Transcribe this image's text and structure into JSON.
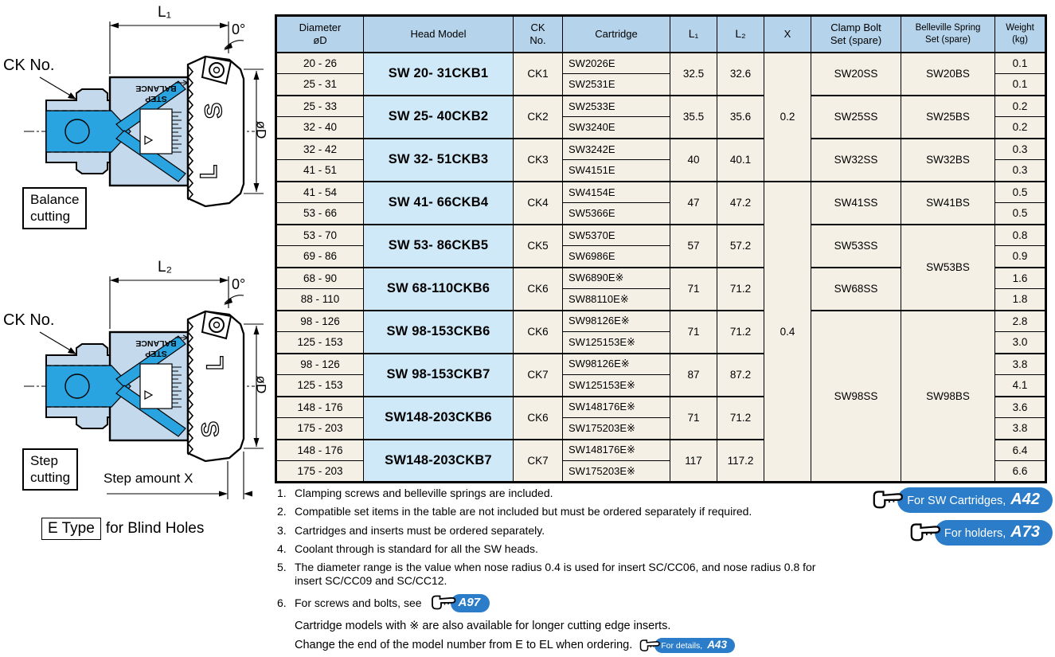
{
  "colors": {
    "header_bg": "#b5d3ea",
    "model_bg": "#cfe9f8",
    "cell_bg": "#f4f0e5",
    "badge_blue": "#2b7cc9",
    "tool_light": "#c5d9ed",
    "tool_bright": "#29a4e0"
  },
  "diagrams": {
    "balance": {
      "caption": "Balance\ncutting",
      "length_label": "L₁",
      "angle_label": "0°",
      "ck_label": "CK No.",
      "diameter_label": "øD",
      "body_text_line1": "STEP",
      "body_text_line2": "BALANCE",
      "letter_top": "S",
      "letter_bottom": "L"
    },
    "step": {
      "caption": "Step\ncutting",
      "length_label": "L₂",
      "angle_label": "0°",
      "ck_label": "CK No.",
      "diameter_label": "øD",
      "step_amount_label": "Step amount X",
      "body_text_line1": "STEP",
      "body_text_line2": "BALANCE",
      "letter_top": "L",
      "letter_bottom": "S"
    },
    "e_type": {
      "boxed": "E Type",
      "rest": "for Blind Holes"
    }
  },
  "table": {
    "columns": [
      "Diameter\nøD",
      "Head Model",
      "CK\nNo.",
      "Cartridge",
      "L₁",
      "L₂",
      "X",
      "Clamp Bolt\nSet (spare)",
      "Belleville Spring\nSet (spare)",
      "Weight\n(kg)"
    ],
    "groups": [
      {
        "head_model": "SW 20- 31CKB1",
        "ck": "CK1",
        "l1": "32.5",
        "l2": "32.6",
        "rows": [
          {
            "diameter": "20 -  26",
            "cartridge": "SW2026E",
            "weight": "0.1"
          },
          {
            "diameter": "25 -  31",
            "cartridge": "SW2531E",
            "weight": "0.1"
          }
        ]
      },
      {
        "head_model": "SW 25- 40CKB2",
        "ck": "CK2",
        "l1": "35.5",
        "l2": "35.6",
        "rows": [
          {
            "diameter": "25 -  33",
            "cartridge": "SW2533E",
            "weight": "0.2"
          },
          {
            "diameter": "32 -  40",
            "cartridge": "SW3240E",
            "weight": "0.2"
          }
        ]
      },
      {
        "head_model": "SW 32- 51CKB3",
        "ck": "CK3",
        "l1": "40",
        "l2": "40.1",
        "rows": [
          {
            "diameter": "32 -  42",
            "cartridge": "SW3242E",
            "weight": "0.3"
          },
          {
            "diameter": "41 -  51",
            "cartridge": "SW4151E",
            "weight": "0.3"
          }
        ]
      },
      {
        "head_model": "SW 41- 66CKB4",
        "ck": "CK4",
        "l1": "47",
        "l2": "47.2",
        "rows": [
          {
            "diameter": "41 -  54",
            "cartridge": "SW4154E",
            "weight": "0.5"
          },
          {
            "diameter": "53 -  66",
            "cartridge": "SW5366E",
            "weight": "0.5"
          }
        ]
      },
      {
        "head_model": "SW 53- 86CKB5",
        "ck": "CK5",
        "l1": "57",
        "l2": "57.2",
        "rows": [
          {
            "diameter": "53 -  70",
            "cartridge": "SW5370E",
            "weight": "0.8"
          },
          {
            "diameter": "69 -  86",
            "cartridge": "SW6986E",
            "weight": "0.9"
          }
        ]
      },
      {
        "head_model": "SW 68-110CKB6",
        "ck": "CK6",
        "l1": "71",
        "l2": "71.2",
        "rows": [
          {
            "diameter": "68 -  90",
            "cartridge": "SW6890E※",
            "weight": "1.6"
          },
          {
            "diameter": "88 - 110",
            "cartridge": "SW88110E※",
            "weight": "1.8"
          }
        ]
      },
      {
        "head_model": "SW 98-153CKB6",
        "ck": "CK6",
        "l1": "71",
        "l2": "71.2",
        "rows": [
          {
            "diameter": "98 - 126",
            "cartridge": "SW98126E※",
            "weight": "2.8"
          },
          {
            "diameter": "125 - 153",
            "cartridge": "SW125153E※",
            "weight": "3.0"
          }
        ]
      },
      {
        "head_model": "SW 98-153CKB7",
        "ck": "CK7",
        "l1": "87",
        "l2": "87.2",
        "rows": [
          {
            "diameter": "98 - 126",
            "cartridge": "SW98126E※",
            "weight": "3.8"
          },
          {
            "diameter": "125 - 153",
            "cartridge": "SW125153E※",
            "weight": "4.1"
          }
        ]
      },
      {
        "head_model": "SW148-203CKB6",
        "ck": "CK6",
        "l1": "71",
        "l2": "71.2",
        "rows": [
          {
            "diameter": "148 - 176",
            "cartridge": "SW148176E※",
            "weight": "3.6"
          },
          {
            "diameter": "175 - 203",
            "cartridge": "SW175203E※",
            "weight": "3.8"
          }
        ]
      },
      {
        "head_model": "SW148-203CKB7",
        "ck": "CK7",
        "l1": "117",
        "l2": "117.2",
        "rows": [
          {
            "diameter": "148 - 176",
            "cartridge": "SW148176E※",
            "weight": "6.4"
          },
          {
            "diameter": "175 - 203",
            "cartridge": "SW175203E※",
            "weight": "6.6"
          }
        ]
      }
    ],
    "x_spans": [
      {
        "start": 0,
        "count": 3,
        "value": "0.2"
      },
      {
        "start": 3,
        "count": 7,
        "value": "0.4"
      }
    ],
    "clamp_spans": [
      {
        "start": 0,
        "count": 1,
        "value": "SW20SS"
      },
      {
        "start": 1,
        "count": 1,
        "value": "SW25SS"
      },
      {
        "start": 2,
        "count": 1,
        "value": "SW32SS"
      },
      {
        "start": 3,
        "count": 1,
        "value": "SW41SS"
      },
      {
        "start": 4,
        "count": 1,
        "value": "SW53SS"
      },
      {
        "start": 5,
        "count": 1,
        "value": "SW68SS"
      },
      {
        "start": 6,
        "count": 4,
        "value": "SW98SS"
      }
    ],
    "belleville_spans": [
      {
        "start": 0,
        "count": 1,
        "value": "SW20BS"
      },
      {
        "start": 1,
        "count": 1,
        "value": "SW25BS"
      },
      {
        "start": 2,
        "count": 1,
        "value": "SW32BS"
      },
      {
        "start": 3,
        "count": 1,
        "value": "SW41BS"
      },
      {
        "start": 4,
        "count": 2,
        "value": "SW53BS"
      },
      {
        "start": 6,
        "count": 4,
        "value": "SW98BS"
      }
    ]
  },
  "footnotes": [
    {
      "num": "1.",
      "text": "Clamping screws and belleville springs are included."
    },
    {
      "num": "2.",
      "text": "Compatible set items in the table are not included but must be ordered separately if required."
    },
    {
      "num": "3.",
      "text": "Cartridges and inserts must be ordered separately."
    },
    {
      "num": "4.",
      "text": "Coolant through is standard for all the SW heads."
    },
    {
      "num": "5.",
      "text": "The diameter range is the value when nose radius 0.4 is used for insert SC/CC06, and nose radius 0.8 for insert SC/CC09 and SC/CC12."
    },
    {
      "num": "6.",
      "text": "For screws and bolts, see"
    }
  ],
  "footnote6_badge": {
    "label": "A97"
  },
  "extra_notes": {
    "line1": "Cartridge models with ※ are also available for longer cutting edge inserts.",
    "line2": "Change the end of the model number from E to EL when ordering.",
    "line2_badge": {
      "prefix": "For details,",
      "label": "A43"
    }
  },
  "side_links": [
    {
      "prefix": "For SW Cartridges,",
      "label": "A42"
    },
    {
      "prefix": "For holders,",
      "label": "A73"
    }
  ]
}
